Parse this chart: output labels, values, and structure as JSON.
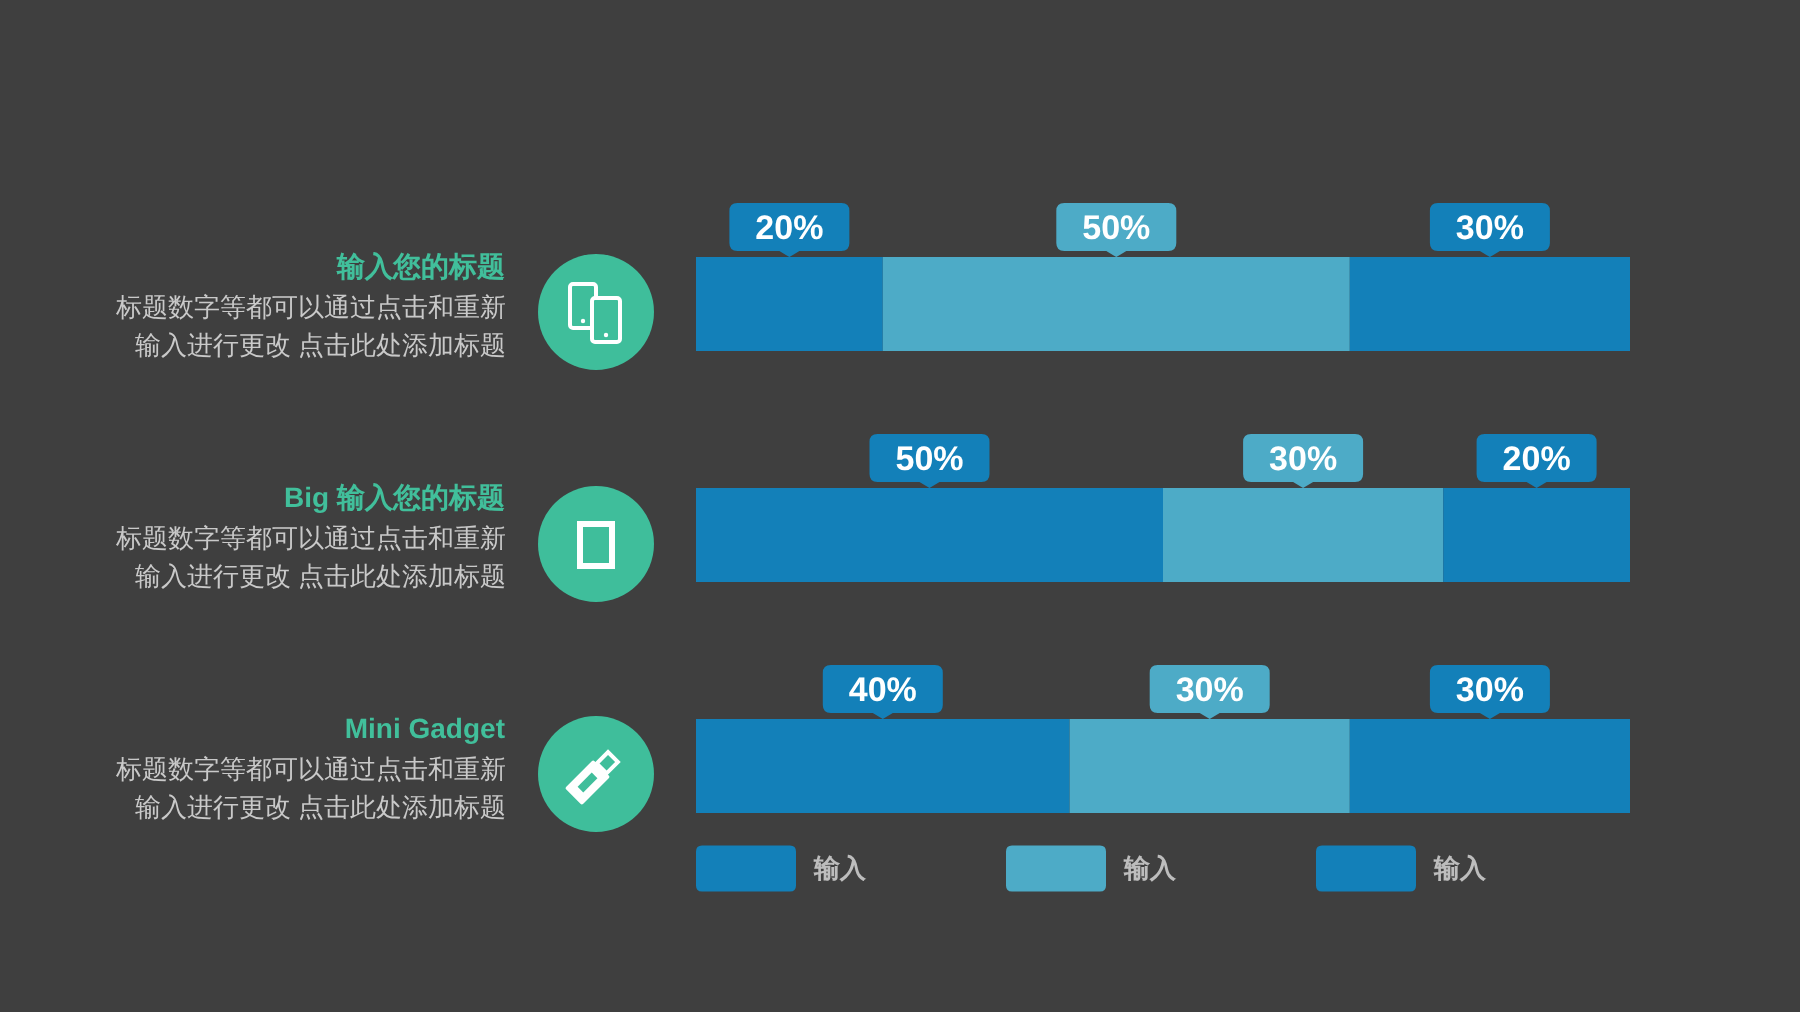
{
  "chart_data": {
    "type": "bar",
    "orientation": "horizontal",
    "stacked": true,
    "categories": [
      "输入您的标题",
      "Big 输入您的标题",
      "Mini Gadget"
    ],
    "series": [
      {
        "name": "输入",
        "color": "#1380b9",
        "values": [
          20,
          50,
          40
        ],
        "value_labels": [
          "20%",
          "50%",
          "40%"
        ]
      },
      {
        "name": "输入",
        "color": "#4dabc7",
        "values": [
          50,
          30,
          30
        ],
        "value_labels": [
          "50%",
          "30%",
          "30%"
        ]
      },
      {
        "name": "输入",
        "color": "#1380b9",
        "values": [
          30,
          20,
          30
        ],
        "value_labels": [
          "30%",
          "20%",
          "30%"
        ]
      }
    ],
    "legend": "bottom",
    "annotations": [
      "标题数字等都可以通过点击和重新输入进行更改 点击此处添加标题",
      "标题数字等都可以通过点击和重新输入进行更改 点击此处添加标题",
      "标题数字等都可以通过点击和重新输入进行更改 点击此处添加标题"
    ]
  }
}
